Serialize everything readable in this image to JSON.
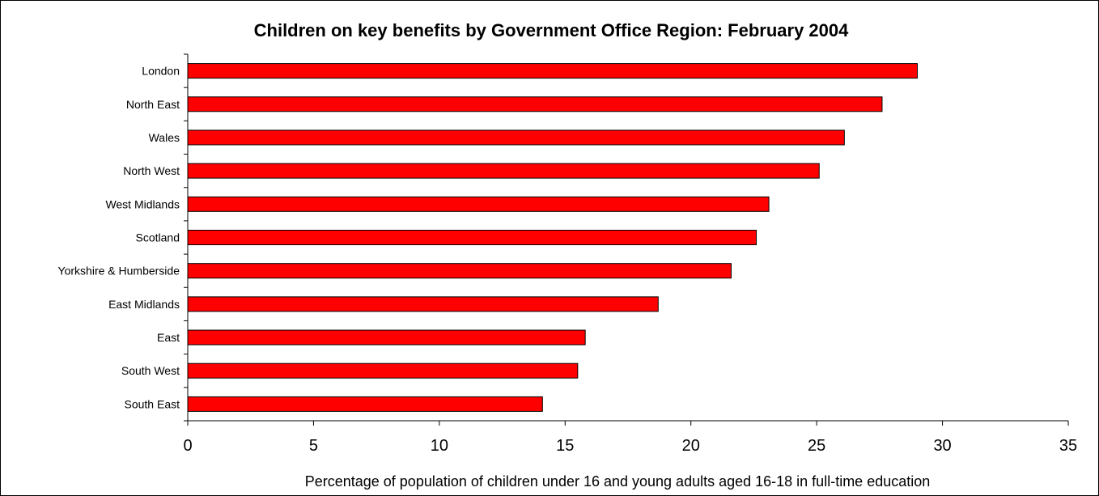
{
  "chart_data": {
    "type": "bar",
    "orientation": "horizontal",
    "title": "Children on key benefits by Government Office Region: February 2004",
    "xlabel": "Percentage of population of children under 16 and young adults aged 16-18 in full-time education",
    "ylabel": "",
    "categories": [
      "London",
      "North East",
      "Wales",
      "North West",
      "West Midlands",
      "Scotland",
      "Yorkshire & Humberside",
      "East Midlands",
      "East",
      "South West",
      "South East"
    ],
    "values": [
      29.0,
      27.6,
      26.1,
      25.1,
      23.1,
      22.6,
      21.6,
      18.7,
      15.8,
      15.5,
      14.1
    ],
    "xlim": [
      0,
      35
    ],
    "xticks": [
      0,
      5,
      10,
      15,
      20,
      25,
      30,
      35
    ],
    "grid": false,
    "legend": "none",
    "bar_color": "#ff0000",
    "bar_outline": "#000000"
  }
}
